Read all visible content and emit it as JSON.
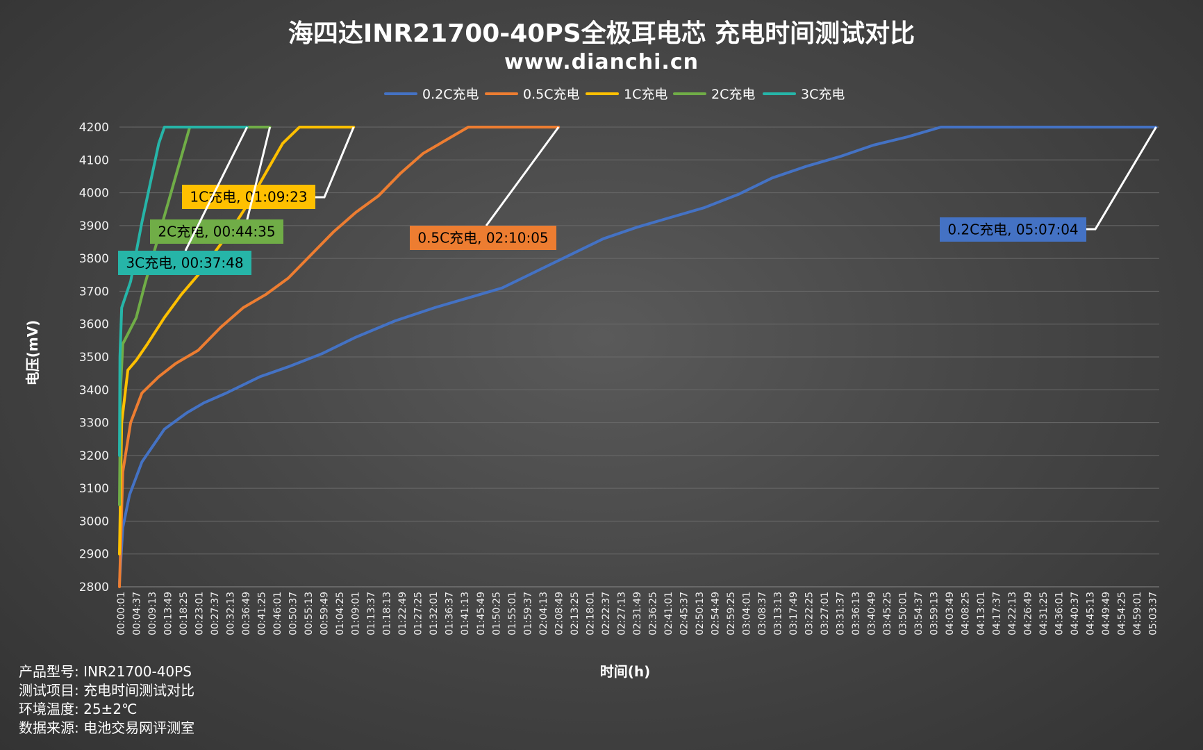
{
  "title": "海四达INR21700-40PS全极耳电芯 充电时间测试对比",
  "subtitle": "www.dianchi.cn",
  "info": [
    {
      "label": "产品型号:",
      "value": "INR21700-40PS"
    },
    {
      "label": "测试项目:",
      "value": "充电时间测试对比"
    },
    {
      "label": "环境温度:",
      "value": "25±2℃"
    },
    {
      "label": "数据来源:",
      "value": "电池交易网评测室"
    }
  ],
  "colors": {
    "0.2C": "#4472c4",
    "0.5C": "#ed7d31",
    "1C": "#ffc000",
    "2C": "#70ad47",
    "3C": "#26b5a8"
  },
  "chart_data": {
    "type": "line",
    "xlabel": "时间(h)",
    "ylabel": "电压(mV)",
    "ylim": [
      2800,
      4200
    ],
    "yticks": [
      2800,
      2900,
      3000,
      3100,
      3200,
      3300,
      3400,
      3500,
      3600,
      3700,
      3800,
      3900,
      4000,
      4100,
      4200
    ],
    "x_unit": "seconds since start of test",
    "xlim": [
      1,
      18480
    ],
    "xtick_labels": [
      "00:00:01",
      "00:04:37",
      "00:09:13",
      "00:13:49",
      "00:18:25",
      "00:23:01",
      "00:27:37",
      "00:32:13",
      "00:36:49",
      "00:41:25",
      "00:46:01",
      "00:50:37",
      "00:55:13",
      "00:59:49",
      "01:04:25",
      "01:09:01",
      "01:13:37",
      "01:18:13",
      "01:22:49",
      "01:27:25",
      "01:32:01",
      "01:36:37",
      "01:41:13",
      "01:45:49",
      "01:50:25",
      "01:55:01",
      "01:59:37",
      "02:04:13",
      "02:08:49",
      "02:13:25",
      "02:18:01",
      "02:22:37",
      "02:27:13",
      "02:31:49",
      "02:36:25",
      "02:41:01",
      "02:45:37",
      "02:50:13",
      "02:54:49",
      "02:59:25",
      "03:04:01",
      "03:08:37",
      "03:13:13",
      "03:17:49",
      "03:22:25",
      "03:27:01",
      "03:31:37",
      "03:36:13",
      "03:40:49",
      "03:45:25",
      "03:50:01",
      "03:54:37",
      "03:59:13",
      "04:03:49",
      "04:08:25",
      "04:13:01",
      "04:17:37",
      "04:22:13",
      "04:26:49",
      "04:31:25",
      "04:36:01",
      "04:40:37",
      "04:45:13",
      "04:49:49",
      "04:54:25",
      "04:59:01",
      "05:03:37"
    ],
    "grid": "horizontal",
    "legend_position": "top",
    "series": [
      {
        "name": "0.2C充电",
        "color_key": "0.2C",
        "callout": "0.2C充电, 05:07:04",
        "x": [
          1,
          60,
          180,
          400,
          800,
          1200,
          1500,
          1900,
          2500,
          3000,
          3600,
          4200,
          4900,
          5600,
          6200,
          6800,
          7400,
          8000,
          8600,
          9200,
          9800,
          10400,
          11000,
          11600,
          12200,
          12800,
          13400,
          14000,
          14600,
          15200,
          15800,
          16400,
          17000,
          17600,
          18000,
          18424
        ],
        "y": [
          2810,
          2980,
          3080,
          3180,
          3280,
          3330,
          3360,
          3390,
          3440,
          3470,
          3510,
          3560,
          3610,
          3650,
          3680,
          3710,
          3760,
          3810,
          3860,
          3895,
          3925,
          3955,
          3995,
          4045,
          4080,
          4110,
          4145,
          4170,
          4200,
          4200,
          4200,
          4200,
          4200,
          4200,
          4200,
          4200
        ]
      },
      {
        "name": "0.5C充电",
        "color_key": "0.5C",
        "callout": "0.5C充电, 02:10:05",
        "x": [
          1,
          60,
          200,
          400,
          700,
          1000,
          1400,
          1800,
          2200,
          2600,
          3000,
          3400,
          3800,
          4200,
          4600,
          5000,
          5400,
          5800,
          6200,
          6600,
          7000,
          7400,
          7805
        ],
        "y": [
          2800,
          3150,
          3300,
          3390,
          3440,
          3480,
          3520,
          3590,
          3650,
          3690,
          3740,
          3810,
          3880,
          3940,
          3990,
          4060,
          4120,
          4160,
          4200,
          4200,
          4200,
          4200,
          4200
        ]
      },
      {
        "name": "1C充电",
        "color_key": "1C",
        "callout": "1C充电, 01:09:23",
        "x": [
          1,
          40,
          150,
          300,
          500,
          800,
          1100,
          1400,
          1700,
          2000,
          2300,
          2600,
          2900,
          3200,
          3500,
          3800,
          4163
        ],
        "y": [
          2900,
          3300,
          3460,
          3490,
          3540,
          3620,
          3690,
          3750,
          3820,
          3890,
          3970,
          4060,
          4150,
          4200,
          4200,
          4200,
          4200
        ]
      },
      {
        "name": "2C充电",
        "color_key": "2C",
        "callout": "2C充电, 00:44:35",
        "x": [
          1,
          20,
          60,
          150,
          300,
          450,
          650,
          850,
          1050,
          1250,
          1450,
          1650,
          2000,
          2300,
          2675
        ],
        "y": [
          3050,
          3400,
          3540,
          3570,
          3620,
          3720,
          3840,
          3960,
          4080,
          4200,
          4200,
          4200,
          4200,
          4200,
          4200
        ]
      },
      {
        "name": "3C充电",
        "color_key": "3C",
        "callout": "3C充电, 00:37:48",
        "x": [
          1,
          10,
          40,
          100,
          200,
          300,
          400,
          500,
          600,
          700,
          800,
          900,
          1000,
          1200,
          1500,
          1800,
          2000,
          2268
        ],
        "y": [
          3200,
          3500,
          3650,
          3680,
          3730,
          3820,
          3910,
          3990,
          4070,
          4150,
          4200,
          4200,
          4200,
          4200,
          4200,
          4200,
          4200,
          4200
        ]
      }
    ]
  }
}
